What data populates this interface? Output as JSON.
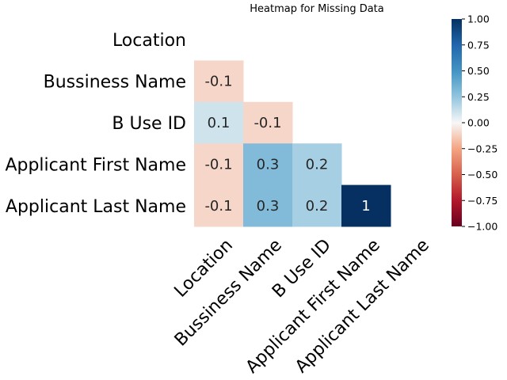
{
  "chart_data": {
    "type": "heatmap",
    "title": "Heatmap for Missing Data",
    "row_labels": [
      "Location",
      "Bussiness Name",
      "B Use ID",
      "Applicant First Name",
      "Applicant Last Name"
    ],
    "col_labels": [
      "Location",
      "Bussiness Name",
      "B Use ID",
      "Applicant First Name",
      "Applicant Last Name"
    ],
    "matrix": [
      [
        null,
        null,
        null,
        null,
        null
      ],
      [
        -0.1,
        null,
        null,
        null,
        null
      ],
      [
        0.1,
        -0.1,
        null,
        null,
        null
      ],
      [
        -0.1,
        0.3,
        0.2,
        null,
        null
      ],
      [
        -0.1,
        0.3,
        0.2,
        1,
        null
      ]
    ],
    "cell_labels": [
      [
        null,
        null,
        null,
        null,
        null
      ],
      [
        "-0.1",
        null,
        null,
        null,
        null
      ],
      [
        "0.1",
        "-0.1",
        null,
        null,
        null
      ],
      [
        "-0.1",
        "0.3",
        "0.2",
        null,
        null
      ],
      [
        "-0.1",
        "0.3",
        "0.2",
        "1",
        null
      ]
    ],
    "mask": "upper-triangle-including-diagonal",
    "colormap": "RdBu",
    "vmin": -1,
    "vmax": 1,
    "colorbar": {
      "ticks": [
        1.0,
        0.75,
        0.5,
        0.25,
        0.0,
        -0.25,
        -0.5,
        -0.75,
        -1.0
      ],
      "tick_labels": [
        "1.00",
        "0.75",
        "0.50",
        "0.25",
        "0.00",
        "−0.25",
        "−0.50",
        "−0.75",
        "−1.00"
      ]
    },
    "grid": false,
    "legend": "colorbar-right",
    "xtick_rotation_deg": 45
  }
}
